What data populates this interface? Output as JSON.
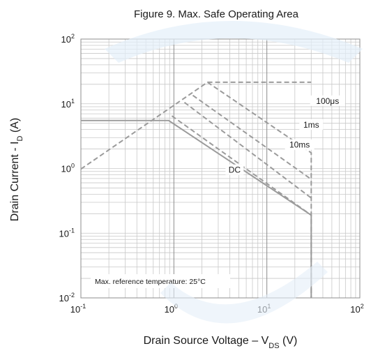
{
  "chart_data": {
    "type": "line",
    "title": "Figure 9. Max. Safe Operating Area",
    "xlabel": {
      "main": "Drain Source Voltage  –  V",
      "sub": "DS",
      "tail": " (V)"
    },
    "ylabel": {
      "main": "Drain Current - I",
      "sub": "D",
      "tail": " (A)"
    },
    "x_scale": "log",
    "y_scale": "log",
    "xlim": [
      0.1,
      100
    ],
    "ylim": [
      0.01,
      100
    ],
    "grid": true,
    "x_ticks": [
      {
        "base": "10",
        "exp": "-1",
        "value": 0.1
      },
      {
        "base": "10",
        "exp": "0",
        "value": 1
      },
      {
        "base": "10",
        "exp": "1",
        "value": 10
      },
      {
        "base": "10",
        "exp": "2",
        "value": 100
      }
    ],
    "y_ticks": [
      {
        "base": "10",
        "exp": "-2",
        "value": 0.01
      },
      {
        "base": "10",
        "exp": "-1",
        "value": 0.1
      },
      {
        "base": "10",
        "exp": "0",
        "value": 1
      },
      {
        "base": "10",
        "exp": "1",
        "value": 10
      },
      {
        "base": "10",
        "exp": "2",
        "value": 100
      }
    ],
    "annotation": "Max. reference temperature: 25°C",
    "series": [
      {
        "name": "100μs",
        "style": "dashed",
        "color": "#9b9b9b",
        "x": [
          0.1,
          2.3,
          30,
          30
        ],
        "y": [
          0.98,
          21.5,
          1.75,
          0.01
        ],
        "label_at": [
          45,
          10.5
        ]
      },
      {
        "name": "1ms",
        "style": "dashed",
        "color": "#9b9b9b",
        "x": [
          1.6,
          30
        ],
        "y": [
          13.5,
          0.68
        ],
        "label_at": [
          30,
          4.5
        ]
      },
      {
        "name": "10ms",
        "style": "dashed",
        "color": "#9b9b9b",
        "x": [
          1.3,
          30
        ],
        "y": [
          10.5,
          0.35
        ],
        "label_at": [
          22.5,
          2.2
        ]
      },
      {
        "name": "",
        "style": "dashed",
        "color": "#9b9b9b",
        "x": [
          0.95,
          30
        ],
        "y": [
          6.5,
          0.19
        ]
      },
      {
        "name": "",
        "style": "dashed",
        "color": "#9b9b9b",
        "x": [
          2.3,
          30
        ],
        "y": [
          21.5,
          21.5
        ]
      },
      {
        "name": "DC",
        "style": "solid",
        "color": "#9b9b9b",
        "x": [
          0.1,
          0.88,
          30,
          30
        ],
        "y": [
          5.5,
          5.5,
          0.19,
          0.01
        ],
        "label_at": [
          4.5,
          0.9
        ]
      }
    ]
  },
  "colors": {
    "grid": "#c8c8c8",
    "frame": "#8c8c8c",
    "curve": "#9b9b9b",
    "text": "#1a1a1a",
    "watermark": "#cfe3f4"
  }
}
